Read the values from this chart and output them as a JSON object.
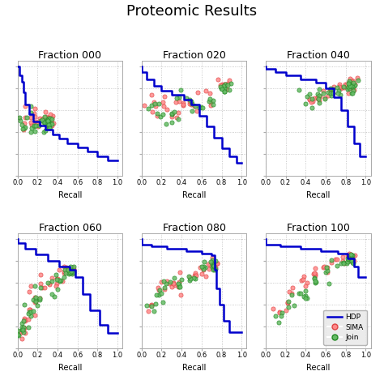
{
  "title": "Proteomic Results",
  "subplots": [
    {
      "title": "Fraction 000"
    },
    {
      "title": "Fraction 020"
    },
    {
      "title": "Fraction 040"
    },
    {
      "title": "Fraction 060"
    },
    {
      "title": "Fraction 080"
    },
    {
      "title": "Fraction 100"
    }
  ],
  "xlabel": "Recall",
  "xlim": [
    0.0,
    1.05
  ],
  "ylim": [
    0.0,
    1.05
  ],
  "xticks": [
    0.0,
    0.2,
    0.4,
    0.6,
    0.8,
    1.0
  ],
  "yticks": [
    0.0,
    0.2,
    0.4,
    0.6,
    0.8,
    1.0
  ],
  "hdp_color": "#0000cc",
  "sima_color_face": "#ff8888",
  "sima_color_edge": "#dd4444",
  "join_color_face": "#66bb66",
  "join_color_edge": "#228822",
  "legend_labels": [
    "HDP",
    "SIMA",
    "Join"
  ],
  "background_color": "#ffffff",
  "grid_color": "#bbbbbb",
  "title_fontsize": 13,
  "subplot_title_fontsize": 9,
  "tick_fontsize": 6,
  "xlabel_fontsize": 7
}
